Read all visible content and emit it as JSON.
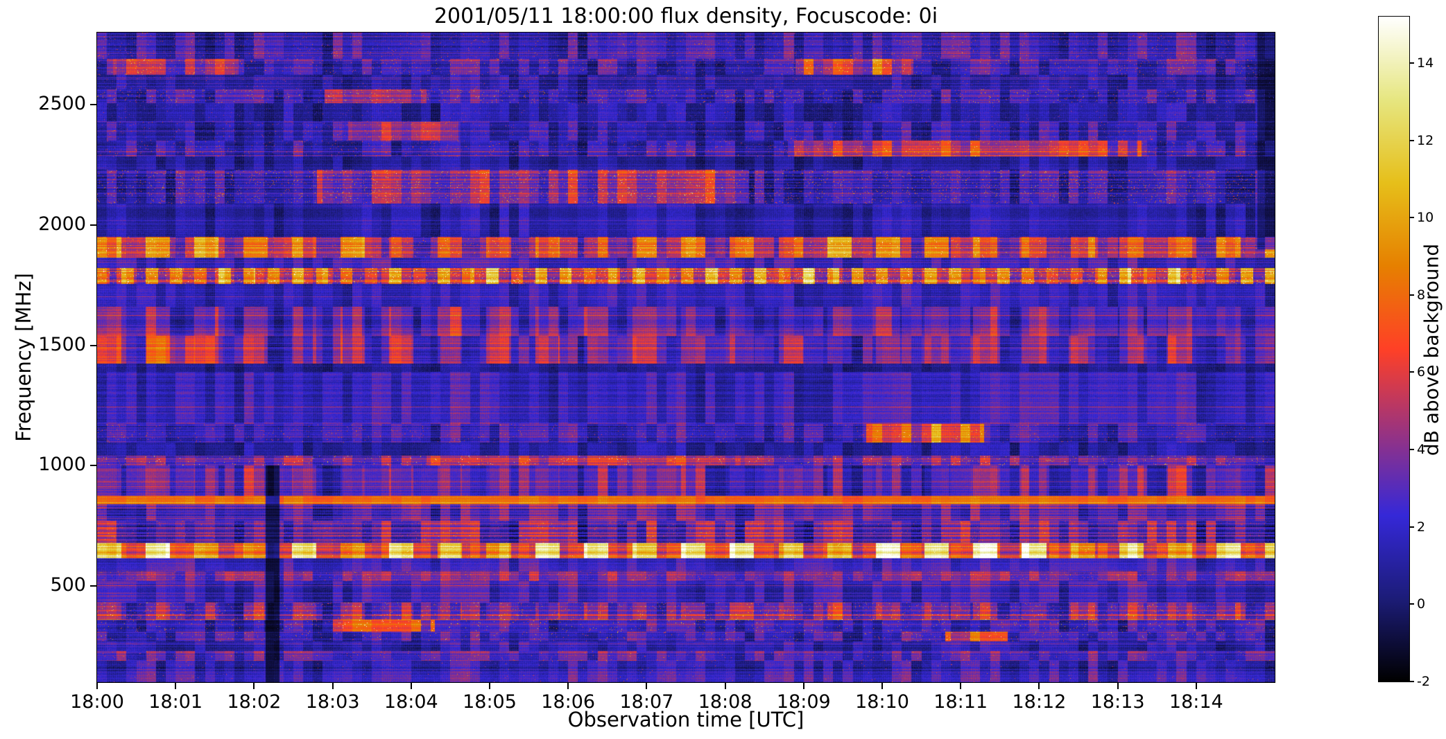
{
  "figure": {
    "title": "2001/05/11 18:00:00 flux density, Focuscode: 0i",
    "xlabel": "Observation time [UTC]",
    "ylabel": "Frequency [MHz]",
    "colorbar_label": "dB above background"
  },
  "chart_data": {
    "type": "heatmap",
    "title": "2001/05/11 18:00:00 flux density, Focuscode: 0i",
    "xlabel": "Observation time [UTC]",
    "ylabel": "Frequency [MHz]",
    "x_tick_labels": [
      "18:00",
      "18:01",
      "18:02",
      "18:03",
      "18:04",
      "18:05",
      "18:06",
      "18:07",
      "18:08",
      "18:09",
      "18:10",
      "18:11",
      "18:12",
      "18:13",
      "18:14"
    ],
    "x_minutes_range": [
      0,
      15
    ],
    "y_ticks_mhz": [
      500,
      1000,
      1500,
      2000,
      2500
    ],
    "freq_range_mhz": [
      100,
      2800
    ],
    "value_range_db": [
      -2,
      15.2
    ],
    "colorbar": {
      "label": "dB above background",
      "ticks": [
        -2,
        0,
        2,
        4,
        6,
        8,
        10,
        12,
        14
      ]
    },
    "colormap_stops": [
      [
        0.0,
        "#000000"
      ],
      [
        0.125,
        "#1c1c78"
      ],
      [
        0.25,
        "#3528d8"
      ],
      [
        0.375,
        "#993380"
      ],
      [
        0.5,
        "#ff4026"
      ],
      [
        0.625,
        "#e68000"
      ],
      [
        0.75,
        "#e6bf1a"
      ],
      [
        0.875,
        "#e6e680"
      ],
      [
        1.0,
        "#ffffff"
      ]
    ],
    "seed": 20010511,
    "bands": [
      {
        "lo": 100,
        "hi": 190,
        "base": 2.0,
        "rough": 0.5,
        "blk": 1.4,
        "spkP": 0.004,
        "spkA": 6
      },
      {
        "lo": 190,
        "hi": 230,
        "base": 2.8,
        "rough": 0.4,
        "blk": 1.6,
        "spkP": 0.01,
        "spkA": 6
      },
      {
        "lo": 230,
        "hi": 270,
        "base": 1.5,
        "rough": 0.5,
        "blk": 1.2
      },
      {
        "lo": 270,
        "hi": 310,
        "base": 2.4,
        "rough": 0.5,
        "blk": 1.6,
        "spkP": 0.012,
        "spkA": 8,
        "bursts": [
          [
            10.8,
            11.6,
            5
          ]
        ]
      },
      {
        "lo": 310,
        "hi": 360,
        "base": 2.2,
        "rough": 0.5,
        "blk": 1.6,
        "spkP": 0.015,
        "spkA": 9,
        "bursts": [
          [
            3.0,
            4.3,
            6
          ]
        ]
      },
      {
        "lo": 360,
        "hi": 430,
        "base": 2.8,
        "rough": 0.5,
        "blk": 1.9,
        "blob": 2,
        "per": 0.62,
        "spkP": 0.02,
        "spkA": 7
      },
      {
        "lo": 430,
        "hi": 520,
        "base": 2.2,
        "rough": 0.4,
        "blk": 1.3
      },
      {
        "lo": 520,
        "hi": 560,
        "base": 3.4,
        "rough": 0.4,
        "blk": 1.6,
        "spkP": 0.02,
        "spkA": 5
      },
      {
        "lo": 560,
        "hi": 615,
        "base": 2.0,
        "rough": 0.4,
        "blk": 1.2
      },
      {
        "lo": 615,
        "hi": 680,
        "base": 6.0,
        "rough": 0.4,
        "blk": 1.5,
        "blob": 5.5,
        "per": 0.62,
        "spkP": 0.01,
        "spkA": 4
      },
      {
        "lo": 680,
        "hi": 770,
        "base": 3.0,
        "rough": 0.6,
        "blk": 2.5,
        "spkP": 0.012,
        "spkA": 5
      },
      {
        "lo": 770,
        "hi": 840,
        "base": 2.6,
        "rough": 0.5,
        "blk": 1.7
      },
      {
        "lo": 840,
        "hi": 875,
        "base": 8.0,
        "rough": 0.15,
        "blk": 0.5
      },
      {
        "lo": 875,
        "hi": 1000,
        "base": 2.4,
        "rough": 0.5,
        "blk": 1.7,
        "blob": 1.5,
        "per": 0.62
      },
      {
        "lo": 1000,
        "hi": 1040,
        "base": 3.8,
        "rough": 0.4,
        "blk": 1.6,
        "spkP": 0.02,
        "spkA": 9,
        "bursts": [
          [
            4.2,
            8.2,
            2
          ]
        ]
      },
      {
        "lo": 1040,
        "hi": 1095,
        "base": 1.0,
        "rough": 0.4,
        "blk": 0.8
      },
      {
        "lo": 1095,
        "hi": 1175,
        "base": 2.0,
        "rough": 0.5,
        "blk": 1.3,
        "spkP": 0.012,
        "spkA": 6,
        "bursts": [
          [
            9.8,
            11.3,
            6
          ]
        ]
      },
      {
        "lo": 1175,
        "hi": 1390,
        "base": 2.0,
        "rough": 0.4,
        "blk": 1.1
      },
      {
        "lo": 1390,
        "hi": 1425,
        "base": 0.6,
        "rough": 0.2,
        "blk": 0.5
      },
      {
        "lo": 1425,
        "hi": 1540,
        "base": 2.3,
        "rough": 0.5,
        "blk": 1.5,
        "blob": 2.2,
        "per": 0.62,
        "bursts": [
          [
            0,
            1.6,
            2
          ]
        ]
      },
      {
        "lo": 1540,
        "hi": 1660,
        "base": 2.1,
        "rough": 0.5,
        "blk": 1.4,
        "blob": 1.8,
        "per": 0.62
      },
      {
        "lo": 1660,
        "hi": 1755,
        "base": 1.8,
        "rough": 0.4,
        "blk": 1.0
      },
      {
        "lo": 1755,
        "hi": 1820,
        "base": 5.0,
        "rough": 0.5,
        "blk": 1.6,
        "blob": 4.5,
        "per": 0.31,
        "spkP": 0.04,
        "spkA": 8
      },
      {
        "lo": 1820,
        "hi": 1865,
        "base": 2.2,
        "rough": 0.4,
        "blk": 1.2
      },
      {
        "lo": 1865,
        "hi": 1950,
        "base": 4.0,
        "rough": 0.5,
        "blk": 1.9,
        "blob": 4.0,
        "per": 0.62,
        "spkP": 0.015,
        "spkA": 6
      },
      {
        "lo": 1950,
        "hi": 2090,
        "base": 1.2,
        "rough": 0.4,
        "blk": 0.9
      },
      {
        "lo": 2090,
        "hi": 2230,
        "base": 1.8,
        "rough": 0.7,
        "blk": 1.5,
        "spkP": 0.03,
        "spkA": 8,
        "bursts": [
          [
            2.8,
            8.3,
            3
          ]
        ]
      },
      {
        "lo": 2230,
        "hi": 2285,
        "base": 0.9,
        "rough": 0.4,
        "blk": 0.8
      },
      {
        "lo": 2285,
        "hi": 2350,
        "base": 1.8,
        "rough": 0.5,
        "blk": 1.5,
        "spkP": 0.02,
        "spkA": 6,
        "bursts": [
          [
            8.8,
            13.3,
            4
          ]
        ]
      },
      {
        "lo": 2350,
        "hi": 2430,
        "base": 1.6,
        "rough": 0.5,
        "blk": 1.4,
        "spkP": 0.015,
        "spkA": 5,
        "bursts": [
          [
            3.2,
            4.6,
            3
          ]
        ]
      },
      {
        "lo": 2430,
        "hi": 2505,
        "base": 1.1,
        "rough": 0.5,
        "blk": 1.0,
        "spkP": 0.01,
        "spkA": 4
      },
      {
        "lo": 2505,
        "hi": 2565,
        "base": 2.2,
        "rough": 0.5,
        "blk": 1.6,
        "spkP": 0.025,
        "spkA": 8,
        "bursts": [
          [
            2.9,
            4.2,
            4
          ]
        ]
      },
      {
        "lo": 2565,
        "hi": 2625,
        "base": 1.0,
        "rough": 0.5,
        "blk": 1.0,
        "spkP": 0.008,
        "spkA": 5
      },
      {
        "lo": 2625,
        "hi": 2690,
        "base": 2.2,
        "rough": 0.5,
        "blk": 1.7,
        "spkP": 0.02,
        "spkA": 7,
        "bursts": [
          [
            0.2,
            1.8,
            3
          ],
          [
            8.9,
            10.4,
            5
          ]
        ]
      },
      {
        "lo": 2690,
        "hi": 2800,
        "base": 1.6,
        "rough": 0.8,
        "blk": 1.6,
        "spkP": 0.015,
        "spkA": 6
      }
    ],
    "dark_columns": [
      [
        2.15,
        2.32,
        100,
        1000,
        0.3
      ],
      [
        14.78,
        15.0,
        1900,
        2800,
        0.5
      ]
    ]
  }
}
